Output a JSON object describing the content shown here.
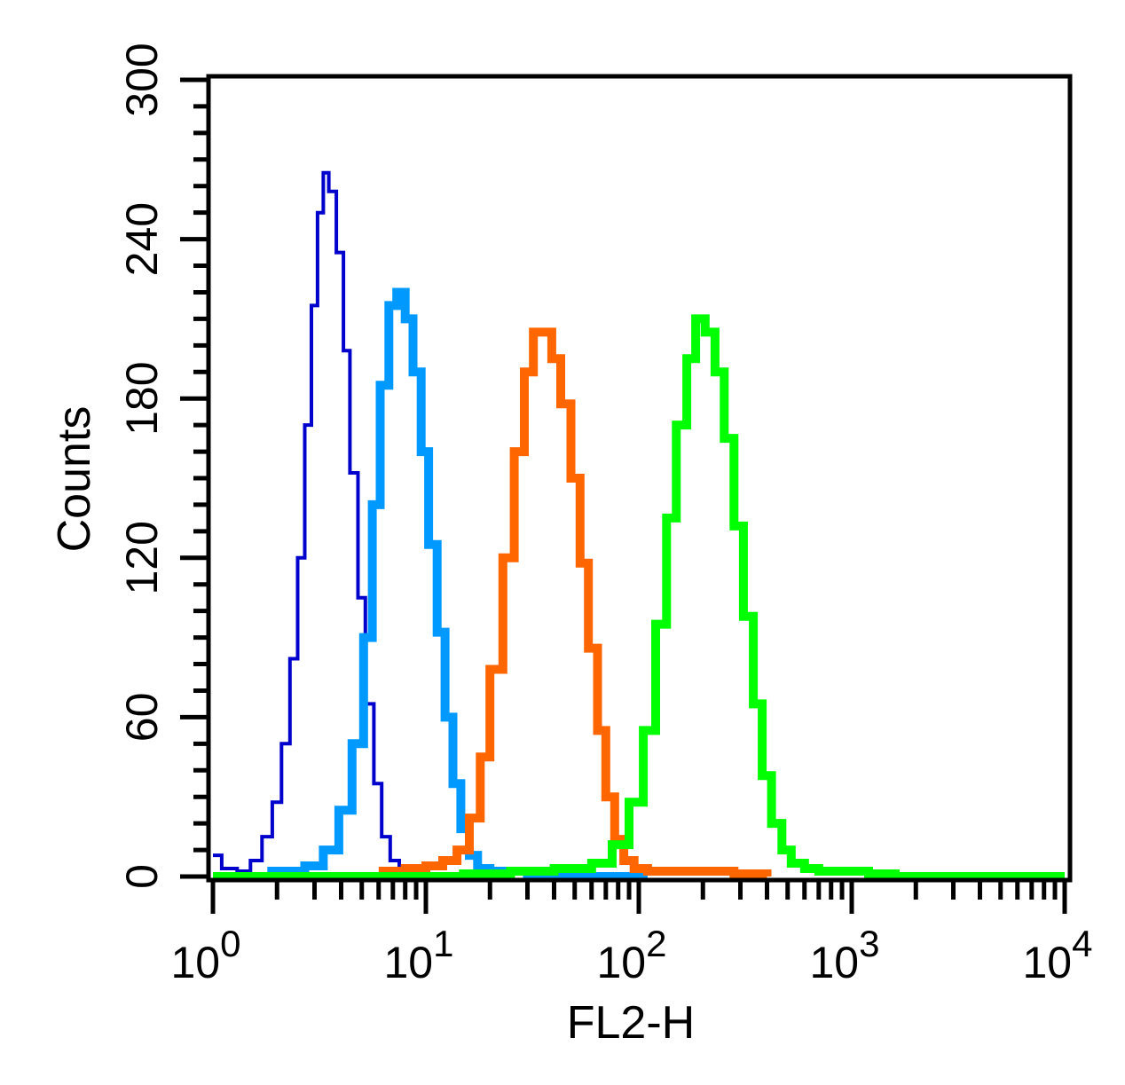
{
  "chart_data": {
    "type": "histogram",
    "title": "",
    "xlabel": "FL2-H",
    "ylabel": "Counts",
    "x_scale": "log",
    "xlim": [
      1,
      10000
    ],
    "ylim": [
      0,
      300
    ],
    "x_ticks": [
      {
        "base": "10",
        "exp": "0"
      },
      {
        "base": "10",
        "exp": "1"
      },
      {
        "base": "10",
        "exp": "2"
      },
      {
        "base": "10",
        "exp": "3"
      },
      {
        "base": "10",
        "exp": "4"
      }
    ],
    "y_ticks": [
      "0",
      "60",
      "120",
      "180",
      "240",
      "300"
    ],
    "y_tick_values": [
      0,
      60,
      120,
      180,
      240,
      300
    ],
    "grid": false,
    "legend": "none",
    "series": [
      {
        "color": "#0000cc",
        "stroke": "thin",
        "points": [
          [
            1.0,
            8
          ],
          [
            1.1,
            3
          ],
          [
            1.3,
            2
          ],
          [
            1.5,
            6
          ],
          [
            1.7,
            15
          ],
          [
            1.9,
            28
          ],
          [
            2.1,
            50
          ],
          [
            2.3,
            82
          ],
          [
            2.5,
            120
          ],
          [
            2.7,
            170
          ],
          [
            2.9,
            215
          ],
          [
            3.1,
            250
          ],
          [
            3.3,
            265
          ],
          [
            3.5,
            258
          ],
          [
            3.8,
            235
          ],
          [
            4.1,
            198
          ],
          [
            4.4,
            152
          ],
          [
            4.8,
            105
          ],
          [
            5.2,
            65
          ],
          [
            5.7,
            35
          ],
          [
            6.2,
            15
          ],
          [
            6.8,
            6
          ],
          [
            7.5,
            2
          ],
          [
            8.5,
            1
          ],
          [
            11.0,
            0
          ],
          [
            13.0,
            1
          ],
          [
            16.0,
            0
          ]
        ]
      },
      {
        "color": "#0099ff",
        "stroke": "thick",
        "points": [
          [
            1.8,
            2
          ],
          [
            2.2,
            2
          ],
          [
            2.7,
            4
          ],
          [
            3.3,
            10
          ],
          [
            3.9,
            25
          ],
          [
            4.5,
            50
          ],
          [
            5.1,
            90
          ],
          [
            5.6,
            140
          ],
          [
            6.1,
            185
          ],
          [
            6.7,
            215
          ],
          [
            7.3,
            220
          ],
          [
            8.0,
            210
          ],
          [
            8.7,
            190
          ],
          [
            9.5,
            160
          ],
          [
            10.3,
            125
          ],
          [
            11.3,
            92
          ],
          [
            12.3,
            60
          ],
          [
            13.4,
            35
          ],
          [
            14.6,
            18
          ],
          [
            16.0,
            8
          ],
          [
            17.5,
            3
          ],
          [
            20.0,
            2
          ],
          [
            25.0,
            2
          ],
          [
            30.0,
            1
          ],
          [
            40.0,
            0
          ],
          [
            60.0,
            0
          ],
          [
            90.0,
            0
          ],
          [
            110.0,
            0
          ]
        ]
      },
      {
        "color": "#ff6600",
        "stroke": "thick",
        "points": [
          [
            6.0,
            2
          ],
          [
            8.0,
            3
          ],
          [
            10.0,
            4
          ],
          [
            12.0,
            6
          ],
          [
            14.0,
            10
          ],
          [
            16.0,
            22
          ],
          [
            18.0,
            45
          ],
          [
            20.0,
            78
          ],
          [
            23.0,
            120
          ],
          [
            26.0,
            160
          ],
          [
            29.0,
            190
          ],
          [
            32.0,
            205
          ],
          [
            35.0,
            205
          ],
          [
            39.0,
            195
          ],
          [
            43.0,
            178
          ],
          [
            48.0,
            150
          ],
          [
            53.0,
            118
          ],
          [
            58.0,
            86
          ],
          [
            64.0,
            55
          ],
          [
            70.0,
            30
          ],
          [
            77.0,
            14
          ],
          [
            85.0,
            6
          ],
          [
            95.0,
            3
          ],
          [
            110.0,
            2
          ],
          [
            140.0,
            2
          ],
          [
            200.0,
            2
          ],
          [
            280.0,
            1
          ],
          [
            400.0,
            0
          ]
        ]
      },
      {
        "color": "#00ff00",
        "stroke": "thick",
        "points": [
          [
            1.0,
            0
          ],
          [
            10.0,
            0
          ],
          [
            15.0,
            1
          ],
          [
            25.0,
            2
          ],
          [
            40.0,
            3
          ],
          [
            60.0,
            5
          ],
          [
            75.0,
            12
          ],
          [
            90.0,
            28
          ],
          [
            105.0,
            55
          ],
          [
            120.0,
            95
          ],
          [
            135.0,
            135
          ],
          [
            150.0,
            170
          ],
          [
            168.0,
            195
          ],
          [
            185.0,
            210
          ],
          [
            205.0,
            205
          ],
          [
            228.0,
            190
          ],
          [
            252.0,
            165
          ],
          [
            280.0,
            132
          ],
          [
            310.0,
            98
          ],
          [
            345.0,
            65
          ],
          [
            380.0,
            38
          ],
          [
            420.0,
            20
          ],
          [
            470.0,
            10
          ],
          [
            520.0,
            5
          ],
          [
            600.0,
            3
          ],
          [
            700.0,
            2
          ],
          [
            900.0,
            2
          ],
          [
            1200.0,
            1
          ],
          [
            1600.0,
            0
          ],
          [
            10000.0,
            0
          ]
        ]
      }
    ]
  }
}
